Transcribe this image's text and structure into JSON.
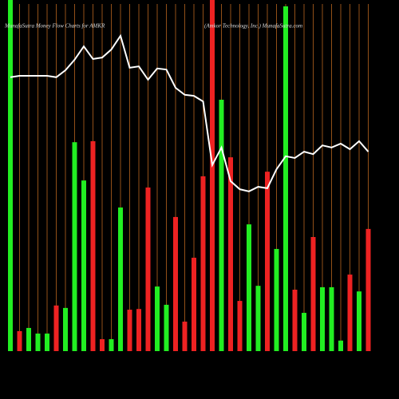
{
  "chart_data": {
    "type": "bar",
    "title": "MunafaSutra  Money Flow  Charts for AMKR",
    "subtitle": "(Amkor Technology, Inc.) MunafaSutra.com",
    "bars": {
      "values": [
        100,
        5.7,
        6.6,
        5,
        5,
        13,
        12.3,
        59.5,
        48.6,
        59.8,
        3.4,
        3.4,
        40.9,
        11.8,
        12,
        46.6,
        18.4,
        13.2,
        38.2,
        8.4,
        26.6,
        49.8,
        100,
        71.6,
        55.2,
        14.3,
        36.1,
        18.6,
        51.1,
        29.1,
        98.2,
        17.5,
        10.9,
        32.5,
        18.2,
        18.2,
        3,
        21.8,
        17,
        34.8
      ],
      "colors": [
        "#22ee22",
        "#ee2222",
        "#22ee22",
        "#22ee22",
        "#22ee22",
        "#ee2222",
        "#22ee22",
        "#22ee22",
        "#22ee22",
        "#ee2222",
        "#ee2222",
        "#22ee22",
        "#22ee22",
        "#ee2222",
        "#ee2222",
        "#ee2222",
        "#22ee22",
        "#22ee22",
        "#ee2222",
        "#ee2222",
        "#ee2222",
        "#ee2222",
        "#ee2222",
        "#22ee22",
        "#ee2222",
        "#ee2222",
        "#22ee22",
        "#22ee22",
        "#ee2222",
        "#22ee22",
        "#22ee22",
        "#ee2222",
        "#22ee22",
        "#ee2222",
        "#22ee22",
        "#22ee22",
        "#22ee22",
        "#ee2222",
        "#22ee22",
        "#ee2222"
      ]
    },
    "line": {
      "values": [
        78,
        78.4,
        78.4,
        78.4,
        78.4,
        78,
        80,
        83,
        86.8,
        83.2,
        83.6,
        85.9,
        89.8,
        80.7,
        81.1,
        77.3,
        80.5,
        80.2,
        75,
        73,
        72.7,
        71.1,
        53,
        58,
        48.4,
        46.1,
        45.5,
        46.8,
        46.4,
        51.8,
        55.5,
        55,
        56.8,
        56.1,
        58.6,
        58,
        59.1,
        57.5,
        59.8,
        56.8
      ],
      "color": "#ffffff"
    },
    "ylim": [
      0,
      100
    ],
    "y2lim": [
      0,
      100
    ],
    "grid_color": "#b8651e"
  }
}
